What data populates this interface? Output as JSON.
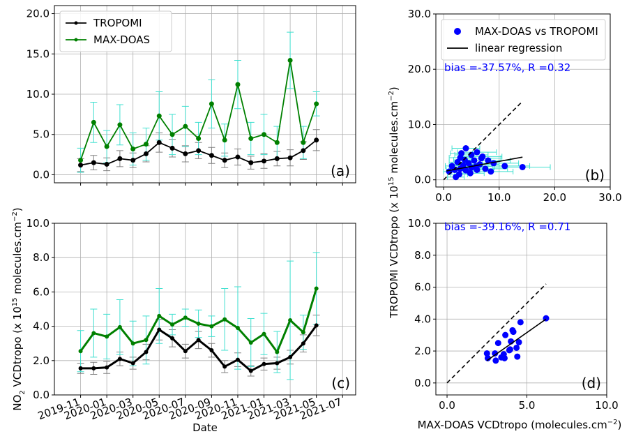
{
  "chart_data": [
    {
      "type": "line",
      "panel_label": "(a)",
      "xlim": [
        "2019-09",
        "2021-08"
      ],
      "ylim": [
        -1,
        21
      ],
      "yticks": [
        {
          "value": 0,
          "label": "0.0"
        },
        {
          "value": 5,
          "label": "5.0"
        },
        {
          "value": 10,
          "label": "10.0"
        },
        {
          "value": 15,
          "label": "15.0"
        },
        {
          "value": 20,
          "label": "20.0"
        }
      ],
      "grid": true,
      "legend": "upper left",
      "x": [
        "2019-11",
        "2019-12",
        "2020-01",
        "2020-02",
        "2020-03",
        "2020-04",
        "2020-05",
        "2020-06",
        "2020-07",
        "2020-08",
        "2020-09",
        "2020-10",
        "2020-11",
        "2020-12",
        "2021-01",
        "2021-02",
        "2021-03",
        "2021-04",
        "2021-05"
      ],
      "series": [
        {
          "name": "TROPOMI",
          "color": "#000000",
          "error_color": "#808080",
          "values": [
            1.2,
            1.5,
            1.3,
            2.0,
            1.8,
            2.6,
            4.0,
            3.3,
            2.6,
            3.0,
            2.4,
            1.8,
            2.2,
            1.5,
            1.7,
            2.0,
            2.1,
            3.0,
            4.3
          ],
          "errors": [
            0.8,
            0.9,
            0.8,
            1.0,
            0.9,
            1.0,
            1.2,
            1.1,
            1.0,
            1.0,
            1.0,
            0.9,
            1.0,
            0.8,
            0.9,
            0.9,
            1.0,
            1.1,
            1.3
          ]
        },
        {
          "name": "MAX-DOAS",
          "color": "#008000",
          "error_color": "#40e0d0",
          "values": [
            1.8,
            6.5,
            3.5,
            6.2,
            3.2,
            3.8,
            7.3,
            5.0,
            6.0,
            4.5,
            8.8,
            4.3,
            11.2,
            4.5,
            5.0,
            4.0,
            14.2,
            4.0,
            8.8
          ],
          "errors": [
            1.5,
            2.5,
            2.0,
            2.5,
            2.0,
            2.0,
            3.0,
            2.5,
            2.5,
            2.0,
            3.0,
            2.0,
            3.0,
            2.0,
            2.5,
            2.0,
            3.5,
            2.0,
            1.5
          ]
        }
      ]
    },
    {
      "type": "scatter",
      "panel_label": "(b)",
      "annotation": "bias =-37.57%, R =0.32",
      "xlim": [
        -1.4,
        30
      ],
      "ylim": [
        -1.3,
        30
      ],
      "xticks": [
        {
          "value": 0,
          "label": "0.0"
        },
        {
          "value": 10,
          "label": "10.0"
        },
        {
          "value": 20,
          "label": "20.0"
        },
        {
          "value": 30,
          "label": "30.0"
        }
      ],
      "yticks": [
        {
          "value": 0,
          "label": "0.0"
        },
        {
          "value": 10,
          "label": "10.0"
        },
        {
          "value": 20,
          "label": "20.0"
        },
        {
          "value": 30,
          "label": "30.0"
        }
      ],
      "grid": true,
      "legend": "upper left",
      "series": [
        {
          "name": "MAX-DOAS vs TROPOMI",
          "color": "#0000ff",
          "error_color": "#40e0d0",
          "x": [
            1,
            1.5,
            2,
            2.5,
            3,
            3,
            3.5,
            4,
            4,
            4.5,
            5,
            5,
            5.5,
            6,
            6,
            6.5,
            7,
            7.5,
            8,
            8.5,
            9,
            11,
            14.2,
            2.2,
            3.8,
            4.8,
            5.8,
            3.2,
            2.8,
            6.8
          ],
          "y": [
            1.5,
            2.5,
            1.8,
            3.2,
            2.0,
            4.0,
            2.6,
            1.7,
            5.7,
            3.0,
            2.2,
            4.5,
            3.5,
            1.8,
            5.0,
            2.8,
            4.2,
            2.0,
            3.5,
            1.5,
            3.0,
            2.5,
            2.3,
            0.5,
            3.6,
            1.2,
            2.4,
            4.8,
            1.0,
            3.9
          ],
          "x_errors": [
            1.0,
            1.2,
            1.5,
            1.5,
            2.0,
            2.0,
            2.0,
            2.5,
            2.5,
            2.5,
            3.0,
            3.0,
            3.0,
            3.0,
            3.5,
            3.5,
            3.5,
            4.0,
            4.0,
            4.0,
            4.5,
            4.5,
            5.0,
            1.5,
            2.0,
            2.5,
            3.0,
            2.0,
            1.5,
            3.5
          ]
        }
      ],
      "regression": {
        "name": "linear regression",
        "color": "#000000",
        "x": [
          0.5,
          14.2
        ],
        "y": [
          1.6,
          4.1
        ]
      },
      "identity": {
        "color": "#000000",
        "x": [
          0,
          14.2
        ],
        "y": [
          0,
          14.2
        ]
      }
    },
    {
      "type": "line",
      "panel_label": "(c)",
      "xlim": [
        "2019-09",
        "2021-08"
      ],
      "ylim": [
        0,
        10
      ],
      "xticks": [
        "2019-11",
        "2020-01",
        "2020-03",
        "2020-05",
        "2020-07",
        "2020-09",
        "2020-11",
        "2021-01",
        "2021-03",
        "2021-05",
        "2021-07"
      ],
      "yticks": [
        {
          "value": 0,
          "label": "0.0"
        },
        {
          "value": 2,
          "label": "2.0"
        },
        {
          "value": 4,
          "label": "4.0"
        },
        {
          "value": 6,
          "label": "6.0"
        },
        {
          "value": 8,
          "label": "8.0"
        },
        {
          "value": 10,
          "label": "10.0"
        }
      ],
      "grid": true,
      "xlabel": "Date",
      "ylabel": [
        "NO",
        "2",
        " VCDtropo (x 10",
        "15",
        " molecules.cm",
        "−2",
        ")"
      ],
      "x": [
        "2019-11",
        "2019-12",
        "2020-01",
        "2020-02",
        "2020-03",
        "2020-04",
        "2020-05",
        "2020-06",
        "2020-07",
        "2020-08",
        "2020-09",
        "2020-10",
        "2020-11",
        "2020-12",
        "2021-01",
        "2021-02",
        "2021-03",
        "2021-04",
        "2021-05"
      ],
      "series": [
        {
          "color": "#000000",
          "error_color": "#808080",
          "values": [
            1.55,
            1.55,
            1.6,
            2.1,
            1.85,
            2.5,
            3.8,
            3.3,
            2.55,
            3.2,
            2.6,
            1.65,
            2.05,
            1.4,
            1.8,
            1.85,
            2.2,
            3.0,
            4.05
          ],
          "errors": [
            0.3,
            0.35,
            0.35,
            0.4,
            0.35,
            0.45,
            0.6,
            0.5,
            0.4,
            0.5,
            0.4,
            0.35,
            0.4,
            0.3,
            0.35,
            0.35,
            0.4,
            0.5,
            0.6
          ]
        },
        {
          "color": "#008000",
          "error_color": "#40e0d0",
          "values": [
            2.55,
            3.6,
            3.4,
            3.95,
            3.0,
            3.2,
            4.6,
            4.1,
            4.5,
            4.15,
            4.0,
            4.4,
            3.9,
            3.05,
            3.55,
            2.5,
            4.35,
            3.65,
            6.2
          ],
          "errors": [
            1.2,
            1.4,
            1.3,
            1.6,
            1.3,
            1.4,
            1.6,
            0.6,
            0.5,
            0.8,
            0.6,
            1.8,
            2.4,
            1.4,
            1.2,
            1.2,
            3.45,
            1.0,
            2.1
          ]
        }
      ]
    },
    {
      "type": "scatter",
      "panel_label": "(d)",
      "annotation": "bias =-39.16%, R =0.71",
      "xlim": [
        -0.7,
        10
      ],
      "ylim": [
        -0.75,
        10
      ],
      "xticks": [
        {
          "value": 0,
          "label": "0.0"
        },
        {
          "value": 5,
          "label": "5.0"
        },
        {
          "value": 10,
          "label": "10.0"
        }
      ],
      "yticks": [
        {
          "value": 0,
          "label": "0.0"
        },
        {
          "value": 2,
          "label": "2.0"
        },
        {
          "value": 4,
          "label": "4.0"
        },
        {
          "value": 6,
          "label": "6.0"
        },
        {
          "value": 8,
          "label": "8.0"
        },
        {
          "value": 10,
          "label": "10.0"
        }
      ],
      "grid": true,
      "xlabel": [
        "MAX-DOAS VCDtropo (molecules.cm",
        "−2",
        ")"
      ],
      "ylabel": [
        "TROPOMI VCDtropo (x 10",
        "15",
        " molecules.cm",
        "−2",
        ")"
      ],
      "series": [
        {
          "color": "#0000ff",
          "x": [
            2.55,
            3.6,
            3.4,
            3.95,
            3.0,
            3.2,
            4.6,
            4.1,
            4.5,
            4.15,
            4.0,
            4.4,
            3.9,
            3.05,
            3.55,
            2.5,
            4.35,
            3.65,
            6.2
          ],
          "y": [
            1.55,
            1.55,
            1.6,
            2.1,
            1.85,
            2.5,
            3.8,
            3.3,
            2.55,
            3.2,
            2.6,
            1.65,
            2.05,
            1.4,
            1.8,
            1.85,
            2.2,
            3.0,
            4.05
          ]
        }
      ],
      "regression": {
        "color": "#000000",
        "x": [
          2.5,
          6.2
        ],
        "y": [
          1.4,
          4.0
        ]
      },
      "identity": {
        "color": "#000000",
        "x": [
          0,
          6.2
        ],
        "y": [
          0,
          6.2
        ]
      }
    }
  ]
}
